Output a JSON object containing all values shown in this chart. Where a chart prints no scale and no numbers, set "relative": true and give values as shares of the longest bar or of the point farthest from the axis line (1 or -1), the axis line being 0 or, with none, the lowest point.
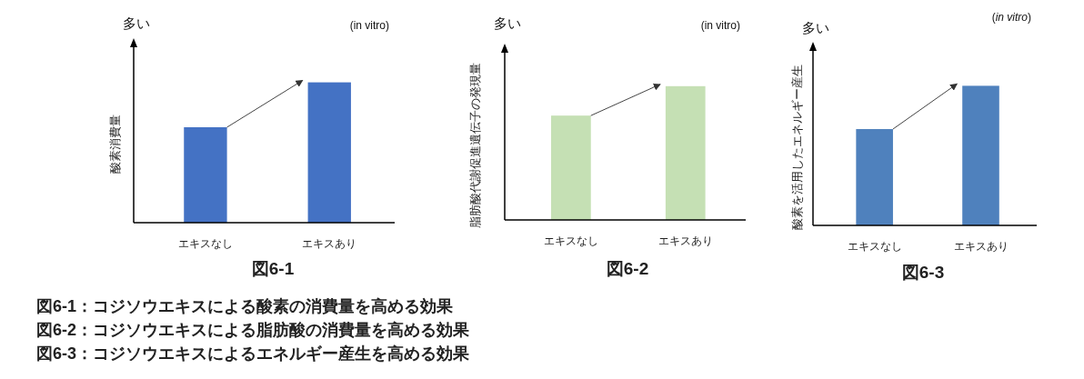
{
  "chart_data": [
    {
      "type": "bar",
      "relative": true,
      "categories": [
        "エキスなし",
        "エキスあり"
      ],
      "values": [
        0.68,
        1
      ],
      "color": "#4472c4",
      "ylabel": "酸素消費量",
      "annotations": [
        "多い",
        "(in vitro)",
        "図6-1"
      ]
    },
    {
      "type": "bar",
      "relative": true,
      "categories": [
        "エキスなし",
        "エキスあり"
      ],
      "values": [
        0.78,
        1
      ],
      "color": "#c5e0b4",
      "ylabel": "脂肪酸代謝促進遺伝子の発現量",
      "annotations": [
        "多い",
        "(in vitro)",
        "図6-2"
      ]
    },
    {
      "type": "bar",
      "relative": true,
      "categories": [
        "エキスなし",
        "エキスあり"
      ],
      "values": [
        0.69,
        1
      ],
      "color": "#4f81bd",
      "ylabel": "酸素を活用したエネルギー産生",
      "annotations": [
        "多い",
        "(*in vitro*)",
        "図6-3"
      ]
    },
    {
      "type": "other",
      "annotations": [
        "図6-1：コジソウエキスによる酸素の消費量を高める効果",
        "図6-2：コジソウエキスによる脂肪酸の消費量を高める効果",
        "図6-3：コジソウエキスによるエネルギー産生を高める効果"
      ]
    }
  ]
}
